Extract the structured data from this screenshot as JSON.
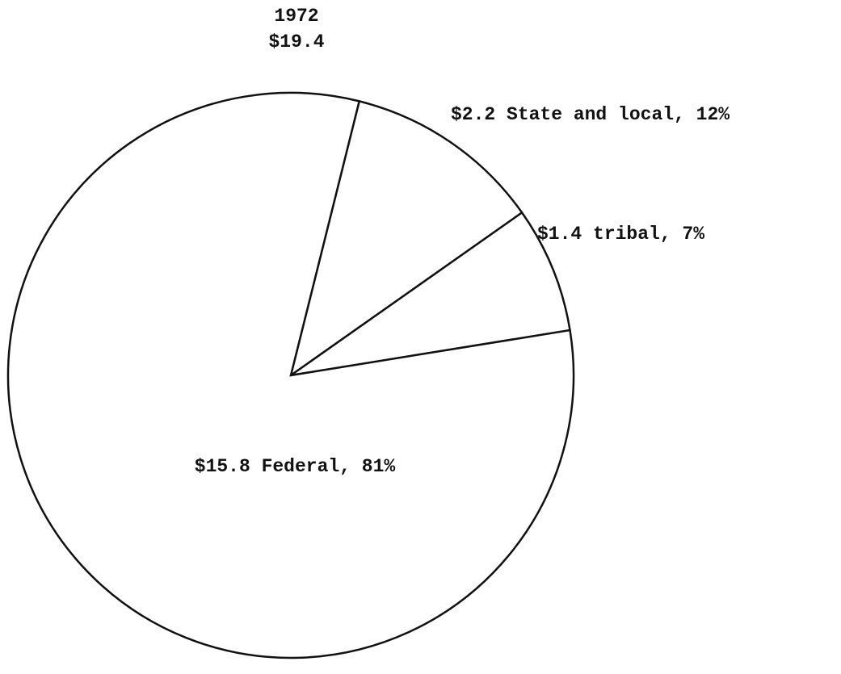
{
  "chart_data": {
    "type": "pie",
    "title": "1972",
    "subtitle": "$19.4",
    "categories": [
      "State and local",
      "tribal",
      "Federal"
    ],
    "values": [
      2.2,
      1.4,
      15.8
    ],
    "value_labels": [
      "$2.2 State and local, 12%",
      "$1.4 tribal, 7%",
      "$15.8 Federal, 81%"
    ],
    "color": "#ffffff"
  }
}
